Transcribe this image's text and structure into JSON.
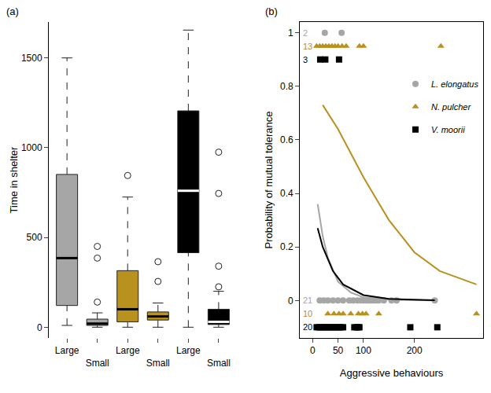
{
  "chart_data": [
    {
      "type": "box",
      "title": "(a)",
      "y_label": "Time in shelter",
      "categories": [
        "Large",
        "Small",
        "Large",
        "Small",
        "Large",
        "Small"
      ],
      "colors": [
        "#a6a6a6",
        "#a6a6a6",
        "#b8911e",
        "#b8911e",
        "#000000",
        "#000000"
      ],
      "boxes": [
        {
          "low": 10,
          "q1": 121,
          "median": 385,
          "q3": 851,
          "high": 1500,
          "outliers": []
        },
        {
          "low": 0,
          "q1": 10,
          "median": 20,
          "q3": 45,
          "high": 80,
          "outliers": [
            450,
            385,
            140
          ]
        },
        {
          "low": 0,
          "q1": 30,
          "median": 100,
          "q3": 315,
          "high": 725,
          "outliers": [
            845
          ]
        },
        {
          "low": 0,
          "q1": 40,
          "median": 60,
          "q3": 85,
          "high": 135,
          "outliers": [
            365,
            255
          ]
        },
        {
          "low": 0,
          "q1": 415,
          "median": 760,
          "q3": 1205,
          "high": 1655,
          "outliers": []
        },
        {
          "low": 0,
          "q1": 15,
          "median": 30,
          "q3": 100,
          "high": 200,
          "outliers": [
            975,
            745,
            340,
            225
          ]
        }
      ],
      "ylim": [
        -60,
        1700
      ],
      "yticks": [
        0,
        500,
        1000,
        1500
      ]
    },
    {
      "type": "scatter",
      "title": "(b)",
      "x_label": "Aggressive behaviours",
      "y_label": "Probability of mutual tolerance",
      "xlim": [
        -25,
        335
      ],
      "xticks": [
        0,
        50,
        100,
        200
      ],
      "ylim": [
        -0.14,
        1.04
      ],
      "yticks": [
        0,
        0.2,
        0.4,
        0.6,
        0.8,
        1
      ],
      "legend": "top right",
      "series": [
        {
          "name": "L. elongatus",
          "color": "#a6a6a6",
          "marker": "circle",
          "curve": {
            "x": [
              10,
              20,
              30,
              50,
              75,
              100,
              150,
              240
            ],
            "values": [
              0.36,
              0.24,
              0.16,
              0.07,
              0.03,
              0.012,
              0.003,
              0.0
            ]
          },
          "tolerant": {
            "count": 2,
            "y": 1,
            "x": [
              24,
              57
            ]
          },
          "intolerant": {
            "count": 21,
            "y": 0,
            "x": [
              14,
              22,
              30,
              40,
              50,
              60,
              72,
              80,
              88,
              95,
              100,
              105,
              110,
              115,
              120,
              125,
              130,
              140,
              155,
              165,
              240
            ]
          }
        },
        {
          "name": "N. pulcher",
          "color": "#b8911e",
          "marker": "triangle-up",
          "curve": {
            "x": [
              20,
              50,
              100,
              150,
              200,
              250,
              322
            ],
            "values": [
              0.73,
              0.64,
              0.46,
              0.3,
              0.18,
              0.11,
              0.06
            ]
          },
          "tolerant": {
            "count": 13,
            "y": 0.95,
            "x": [
              8,
              14,
              20,
              26,
              32,
              38,
              44,
              50,
              58,
              66,
              92,
              100,
              252
            ]
          },
          "intolerant": {
            "count": 10,
            "y": -0.05,
            "x": [
              30,
              42,
              52,
              60,
              75,
              90,
              98,
              105,
              130,
              322
            ]
          }
        },
        {
          "name": "V. moorii",
          "color": "#000000",
          "marker": "square",
          "curve": {
            "x": [
              10,
              20,
              40,
              60,
              100,
              150,
              240
            ],
            "values": [
              0.27,
              0.2,
              0.11,
              0.06,
              0.02,
              0.006,
              0.001
            ]
          },
          "tolerant": {
            "count": 3,
            "y": 0.9,
            "x": [
              15,
              25,
              52
            ]
          },
          "intolerant": {
            "count": 20,
            "y": -0.1,
            "x": [
              8,
              12,
              16,
              20,
              24,
              28,
              32,
              36,
              40,
              44,
              48,
              52,
              56,
              60,
              82,
              86,
              90,
              92,
              192,
              245
            ]
          }
        }
      ]
    }
  ]
}
